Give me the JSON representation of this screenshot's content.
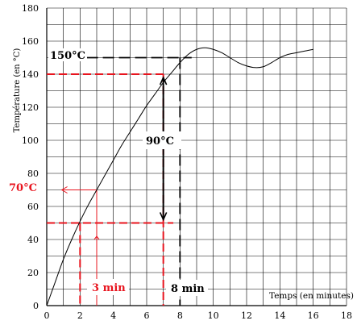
{
  "chart_data": {
    "type": "line",
    "title": "",
    "xlabel": "Temps (en minutes)",
    "ylabel": "Température (en °C)",
    "xlim": [
      0,
      18
    ],
    "ylim": [
      0,
      180
    ],
    "x_ticks": [
      0,
      2,
      4,
      6,
      8,
      10,
      12,
      14,
      16,
      18
    ],
    "y_ticks": [
      0,
      20,
      40,
      60,
      80,
      100,
      120,
      140,
      160,
      180
    ],
    "grid": true,
    "series": [
      {
        "color": "#000000",
        "x": [
          0,
          0.5,
          1,
          1.5,
          2,
          2.5,
          3,
          3.5,
          4,
          4.5,
          5,
          5.5,
          6,
          6.5,
          7,
          7.5,
          8,
          8.5,
          9,
          9.5,
          10,
          10.5,
          11,
          11.5,
          12,
          12.5,
          13,
          13.5,
          14,
          14.5,
          15,
          15.5,
          16
        ],
        "y": [
          0,
          14,
          28,
          40,
          51,
          61,
          70,
          79,
          88,
          97,
          105,
          113,
          121,
          128,
          135,
          141,
          147,
          152,
          155,
          156,
          155,
          153,
          150,
          147,
          145,
          144,
          144.5,
          147,
          150,
          152,
          153,
          154,
          155
        ]
      }
    ],
    "annotations": {
      "t150": "150°C",
      "t70": "70°C",
      "t90": "90°C",
      "t3min": "3 min",
      "t8min": "8 min",
      "red_color": "#e8141e",
      "black_color": "#000000"
    }
  }
}
